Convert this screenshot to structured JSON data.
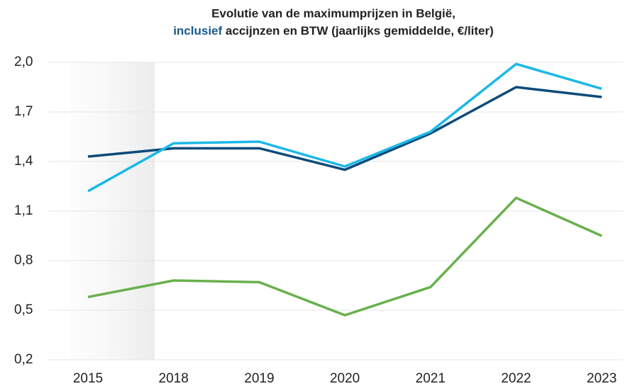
{
  "chart_data": {
    "type": "line",
    "title": "Evolutie van de maximumprijzen in België,",
    "title_highlight": "inclusief",
    "title_rest": "accijnzen en BTW (jaarlijks gemiddelde, €/liter)",
    "title_highlight_color": "#1a5a8a",
    "categories": [
      "2015",
      "2018",
      "2019",
      "2020",
      "2021",
      "2022",
      "2023"
    ],
    "series": [
      {
        "color": "#0d4a7a",
        "values": [
          1.43,
          1.48,
          1.48,
          1.35,
          1.57,
          1.85,
          1.79
        ]
      },
      {
        "color": "#1ab8e8",
        "values": [
          1.22,
          1.51,
          1.52,
          1.37,
          1.58,
          1.99,
          1.84
        ]
      },
      {
        "color": "#6ab04c",
        "values": [
          0.58,
          0.68,
          0.67,
          0.47,
          0.64,
          1.18,
          0.95
        ]
      }
    ],
    "ylim": [
      0.2,
      2.0
    ],
    "yticks": [
      {
        "value": 0.2,
        "label": "0,2"
      },
      {
        "value": 0.5,
        "label": "0,5"
      },
      {
        "value": 0.8,
        "label": "0,8"
      },
      {
        "value": 1.1,
        "label": "1,1"
      },
      {
        "value": 1.4,
        "label": "1,4"
      },
      {
        "value": 1.7,
        "label": "1,7"
      },
      {
        "value": 2.0,
        "label": "2,0"
      }
    ],
    "grid": true
  }
}
